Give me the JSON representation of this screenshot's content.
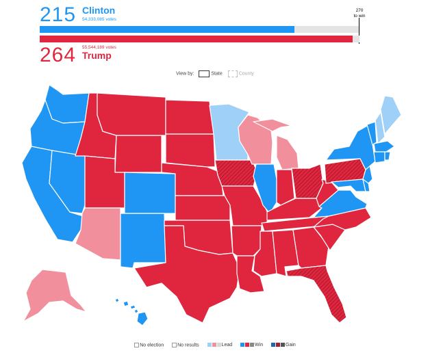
{
  "clinton": {
    "electoral": "215",
    "name": "Clinton",
    "votes": "54,333,085 votes",
    "color": "#1f96f3",
    "electoral_fraction": 0.7963
  },
  "trump": {
    "electoral": "264",
    "name": "Trump",
    "votes": "55,544,189 votes",
    "color": "#e0263f",
    "electoral_fraction": 0.9778
  },
  "threshold": {
    "line1": "270",
    "line2": "to win"
  },
  "view_by": {
    "label": "View by:",
    "state": "State",
    "county": "County",
    "selected": "State"
  },
  "legend": {
    "no_election": "No election",
    "no_results": "No results",
    "lead": "Lead",
    "win": "Win",
    "gain": "Gain"
  },
  "colors": {
    "dem_win": "#1f96f3",
    "dem_lead": "#9fd0f7",
    "rep_win": "#e0263f",
    "rep_lead": "#f28f9d",
    "neutral_light": "#d7d7d7",
    "neutral_dark": "#888888"
  },
  "state_results": {
    "dem_win": [
      "WA",
      "OR",
      "CA",
      "NV",
      "CO",
      "NM",
      "IL",
      "VA",
      "MD",
      "DE",
      "NJ",
      "NY",
      "CT",
      "RI",
      "MA",
      "VT",
      "HI",
      "DC"
    ],
    "dem_lead": [
      "MN",
      "ME",
      "NH"
    ],
    "rep_win": [
      "ID",
      "MT",
      "WY",
      "UT",
      "ND",
      "SD",
      "NE",
      "KS",
      "OK",
      "TX",
      "MO",
      "AR",
      "LA",
      "MS",
      "AL",
      "GA",
      "SC",
      "NC",
      "TN",
      "KY",
      "IN",
      "WV"
    ],
    "rep_gain": [
      "IA",
      "OH",
      "PA",
      "FL"
    ],
    "rep_lead": [
      "AZ",
      "WI",
      "MI",
      "AK"
    ]
  }
}
